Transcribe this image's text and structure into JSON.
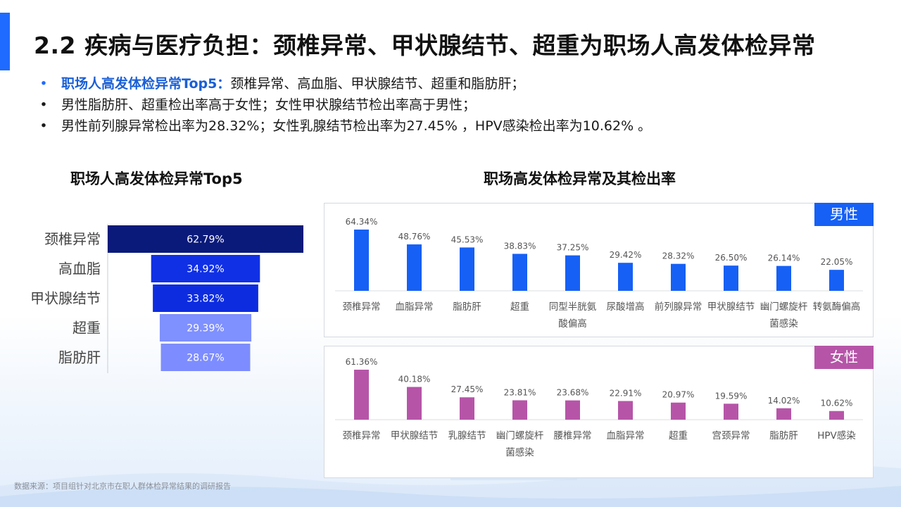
{
  "page": {
    "title": "2.2 疾病与医疗负担：颈椎异常、甲状腺结节、超重为职场人高发体检异常",
    "bullets": [
      {
        "lead": "职场人高发体检异常Top5：",
        "text": "颈椎异常、高血脂、甲状腺结节、超重和脂肪肝；"
      },
      {
        "lead": "",
        "text": "男性脂肪肝、超重检出率高于女性；女性甲状腺结节检出率高于男性；"
      },
      {
        "lead": "",
        "text": "男性前列腺异常检出率为28.32%；女性乳腺结节检出率为27.45% ，HPV感染检出率为10.62% 。"
      }
    ],
    "bullet_symbol": "•",
    "source": "数据来源：项目组针对北京市在职人群体检异常结果的调研报告"
  },
  "chart_data": [
    {
      "type": "bar",
      "orientation": "funnel",
      "title": "职场人高发体检异常Top5",
      "categories": [
        "颈椎异常",
        "高血脂",
        "甲状腺结节",
        "超重",
        "脂肪肝"
      ],
      "values": [
        62.79,
        34.92,
        33.82,
        29.39,
        28.67
      ],
      "labels": [
        "62.79%",
        "34.92%",
        "33.82%",
        "29.39%",
        "28.67%"
      ],
      "colors": [
        "#0a1a7a",
        "#1030e6",
        "#0d2ce0",
        "#7f90ff",
        "#7d8dff"
      ]
    },
    {
      "type": "bar",
      "title": "职场高发体检异常及其检出率",
      "panel_tag": "男性",
      "color": "#1660f5",
      "categories": [
        [
          "颈椎异常"
        ],
        [
          "血脂异常"
        ],
        [
          "脂肪肝"
        ],
        [
          "超重"
        ],
        [
          "同型半胱氨",
          "酸偏高"
        ],
        [
          "尿酸增高"
        ],
        [
          "前列腺异常"
        ],
        [
          "甲状腺结节"
        ],
        [
          "幽门螺旋杆",
          "菌感染"
        ],
        [
          "转氨酶偏高"
        ]
      ],
      "values": [
        64.34,
        48.76,
        45.53,
        38.83,
        37.25,
        29.42,
        28.32,
        26.5,
        26.14,
        22.05
      ],
      "labels": [
        "64.34%",
        "48.76%",
        "45.53%",
        "38.83%",
        "37.25%",
        "29.42%",
        "28.32%",
        "26.50%",
        "26.14%",
        "22.05%"
      ]
    },
    {
      "type": "bar",
      "panel_tag": "女性",
      "color": "#b655a8",
      "categories": [
        [
          "颈椎异常"
        ],
        [
          "甲状腺结节"
        ],
        [
          "乳腺结节"
        ],
        [
          "幽门螺旋杆",
          "菌感染"
        ],
        [
          "腰椎异常"
        ],
        [
          "血脂异常"
        ],
        [
          "超重"
        ],
        [
          "宫颈异常"
        ],
        [
          "脂肪肝"
        ],
        [
          "HPV感染"
        ]
      ],
      "values": [
        61.36,
        40.18,
        27.45,
        23.81,
        23.68,
        22.91,
        20.97,
        19.59,
        14.02,
        10.62
      ],
      "labels": [
        "61.36%",
        "40.18%",
        "27.45%",
        "23.81%",
        "23.68%",
        "22.91%",
        "20.97%",
        "19.59%",
        "14.02%",
        "10.62%"
      ]
    }
  ]
}
